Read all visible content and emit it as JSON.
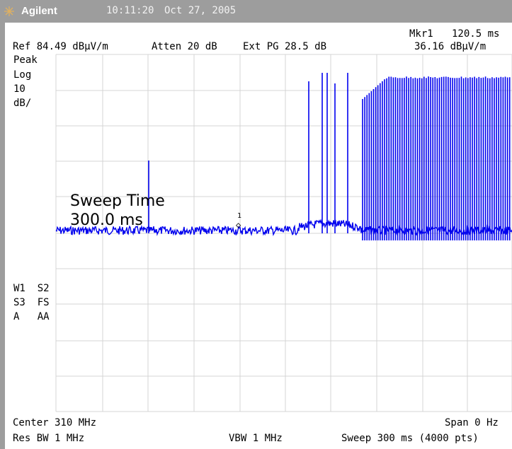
{
  "title_bar": {
    "brand": "Agilent",
    "time": "10:11:20",
    "date": "Oct 27, 2005",
    "background_color": "#9d9d9d"
  },
  "header": {
    "marker_label": "Mkr1",
    "marker_time": "120.5 ms",
    "marker_level": "36.16 dBµV/m",
    "ref_level": "Ref 84.49 dBµV/m",
    "atten": "Atten 20 dB",
    "ext_pg": "Ext PG 28.5 dB"
  },
  "left_annotations": {
    "detector": "Peak",
    "scale_type": "Log",
    "scale_value": "10",
    "scale_unit": "dB/",
    "trace_line1": "W1  S2",
    "trace_line2": "S3  FS",
    "trace_line3": "A   AA"
  },
  "overlay": {
    "sweep_time_label": "Sweep Time",
    "sweep_time_value": "300.0 ms"
  },
  "marker": {
    "number": "1",
    "symbol": "◇"
  },
  "footer": {
    "center": "Center 310 MHz",
    "span": "Span 0 Hz",
    "res_bw": "Res BW 1 MHz",
    "vbw": "VBW 1 MHz",
    "sweep": "Sweep 300 ms (4000 pts)"
  },
  "colors": {
    "trace": "#0000ee",
    "grid": "#d4d4d4",
    "text": "#000000"
  }
}
